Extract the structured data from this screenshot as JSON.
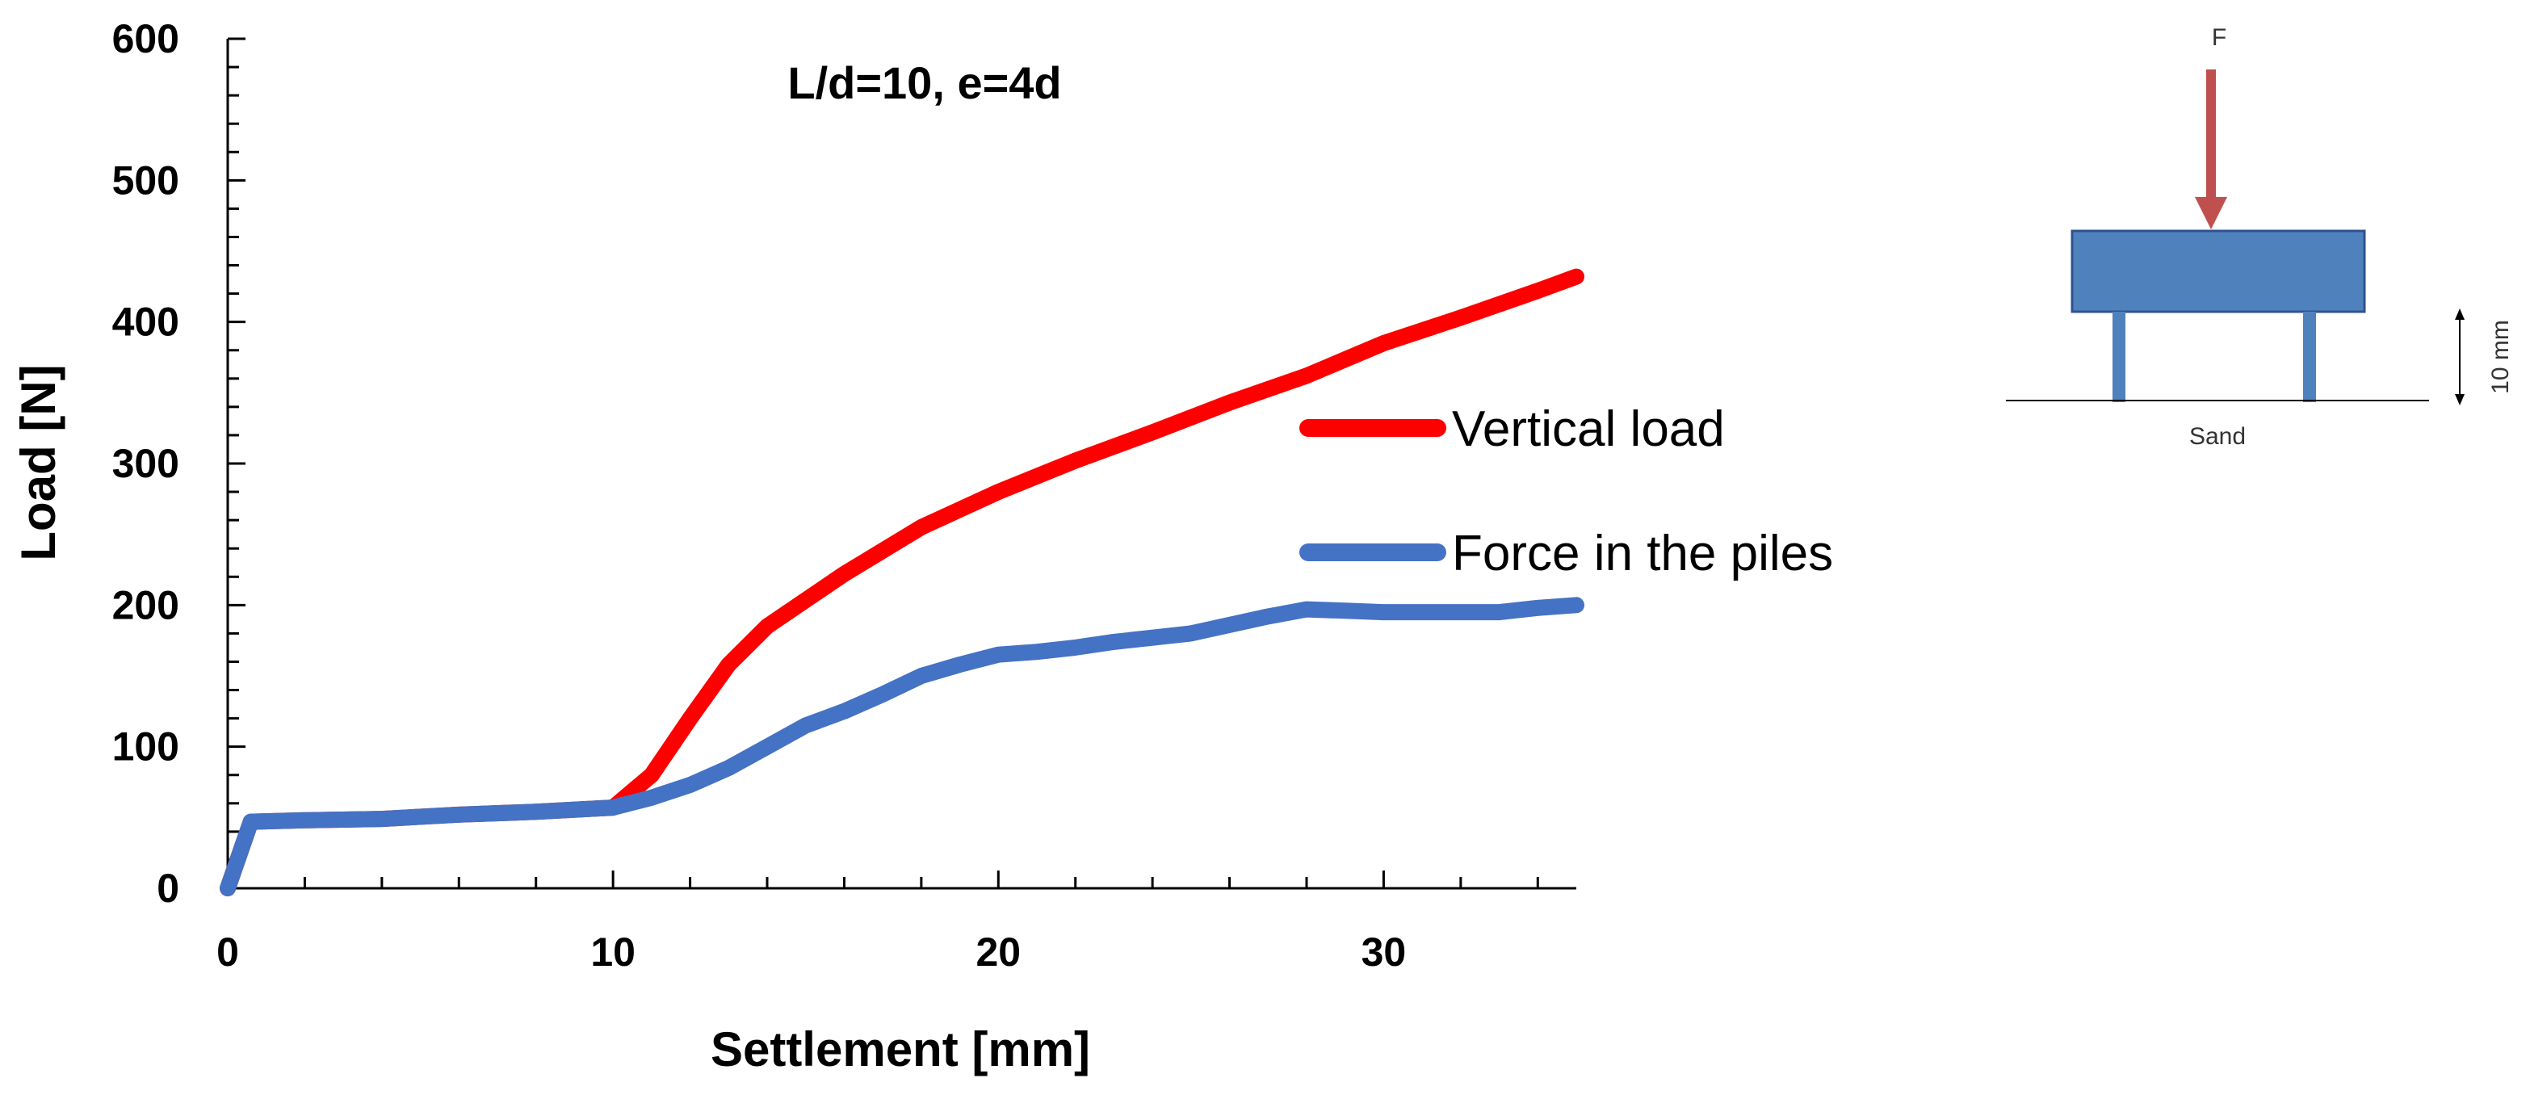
{
  "chart_data": {
    "type": "line",
    "title": "L/d=10, e=4d",
    "xlabel": "Settlement [mm]",
    "ylabel": "Load [N]",
    "xlim": [
      0,
      35
    ],
    "ylim": [
      0,
      600
    ],
    "xticks": [
      0,
      10,
      20,
      30
    ],
    "yticks": [
      0,
      100,
      200,
      300,
      400,
      500,
      600
    ],
    "legend_position": "right",
    "series": [
      {
        "name": "Vertical load",
        "color": "#ff0000",
        "points": [
          [
            0,
            0
          ],
          [
            0.6,
            47
          ],
          [
            2,
            48
          ],
          [
            4,
            49
          ],
          [
            6,
            52
          ],
          [
            8,
            54
          ],
          [
            10,
            57
          ],
          [
            11,
            80
          ],
          [
            12,
            120
          ],
          [
            13,
            158
          ],
          [
            14,
            185
          ],
          [
            16,
            222
          ],
          [
            18,
            255
          ],
          [
            20,
            280
          ],
          [
            22,
            302
          ],
          [
            24,
            322
          ],
          [
            26,
            343
          ],
          [
            28,
            362
          ],
          [
            30,
            385
          ],
          [
            32,
            403
          ],
          [
            34,
            422
          ],
          [
            35,
            432
          ]
        ]
      },
      {
        "name": "Force in the piles",
        "color": "#4472c4",
        "points": [
          [
            0,
            0
          ],
          [
            0.6,
            47
          ],
          [
            2,
            48
          ],
          [
            4,
            49
          ],
          [
            6,
            52
          ],
          [
            8,
            54
          ],
          [
            10,
            57
          ],
          [
            11,
            64
          ],
          [
            12,
            73
          ],
          [
            13,
            85
          ],
          [
            14,
            100
          ],
          [
            15,
            115
          ],
          [
            16,
            125
          ],
          [
            17,
            137
          ],
          [
            18,
            150
          ],
          [
            19,
            158
          ],
          [
            20,
            165
          ],
          [
            21,
            167
          ],
          [
            22,
            170
          ],
          [
            23,
            174
          ],
          [
            24,
            177
          ],
          [
            25,
            180
          ],
          [
            26,
            186
          ],
          [
            27,
            192
          ],
          [
            28,
            197
          ],
          [
            29,
            196
          ],
          [
            30,
            195
          ],
          [
            31,
            195
          ],
          [
            32,
            195
          ],
          [
            33,
            195
          ],
          [
            34,
            198
          ],
          [
            35,
            200
          ]
        ]
      }
    ]
  },
  "diagram": {
    "force_label": "F",
    "dimension_label": "10 mm",
    "ground_label": "Sand",
    "arrow_color": "#c0504d",
    "cap_color": "#4f81bd",
    "cap_border": "#2f528f",
    "pile_color": "#4f81bd"
  }
}
